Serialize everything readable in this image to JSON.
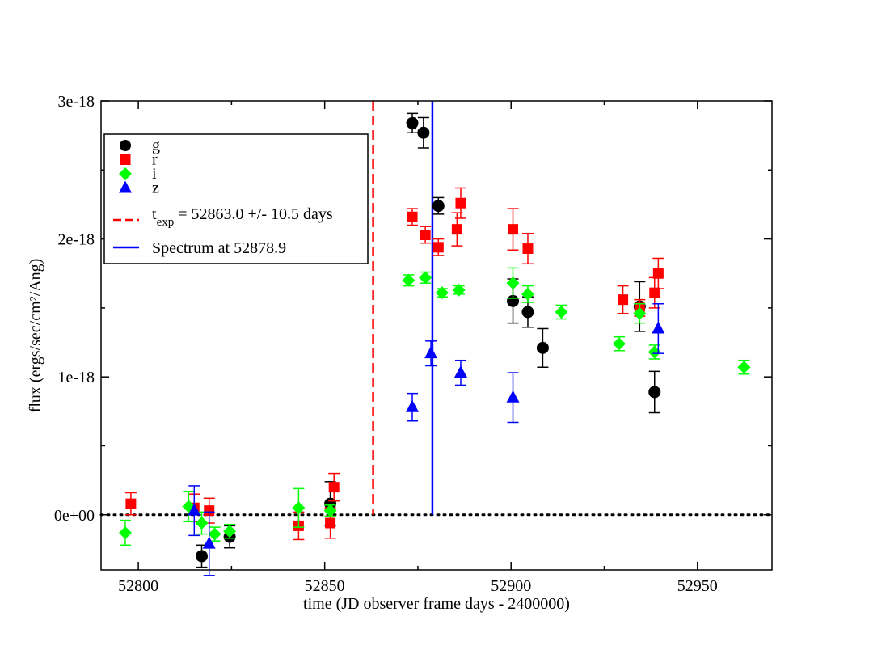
{
  "chart_data": {
    "type": "scatter",
    "title": "",
    "xlabel": "time (JD observer frame days - 2400000)",
    "ylabel": "flux (ergs/sec/cm²/Ang)",
    "xlim": [
      52790,
      52970
    ],
    "ylim": [
      -4e-19,
      3e-18
    ],
    "x_ticks": [
      52800,
      52850,
      52900,
      52950
    ],
    "y_ticks": [
      {
        "value": 0,
        "label": "0e+00"
      },
      {
        "value": 1e-18,
        "label": "1e-18"
      },
      {
        "value": 2e-18,
        "label": "2e-18"
      },
      {
        "value": 3e-18,
        "label": "3e-18"
      }
    ],
    "zero_line": {
      "y": 0,
      "style": "dotted",
      "color": "#000000"
    },
    "vertical_lines": [
      {
        "name": "t_exp",
        "x": 52863.0,
        "color": "#ff0000",
        "style": "dashed",
        "legend_main": "t",
        "legend_sub": "exp",
        "legend_rest": " = 52863.0 +/- 10.5 days"
      },
      {
        "name": "spectrum",
        "x": 52878.9,
        "color": "#0000ff",
        "style": "solid",
        "legend_main": "Spectrum at 52878.9",
        "legend_sub": "",
        "legend_rest": ""
      }
    ],
    "legend_position": "top-left",
    "series": [
      {
        "name": "g",
        "color": "#000000",
        "marker": "circle",
        "points": [
          {
            "x": 52817.0,
            "y": -3e-19,
            "err": 8e-20
          },
          {
            "x": 52824.5,
            "y": -1.6e-19,
            "err": 8e-20
          },
          {
            "x": 52851.5,
            "y": 8e-20,
            "err": 1.6e-19
          },
          {
            "x": 52873.5,
            "y": 2.84e-18,
            "err": 7e-20
          },
          {
            "x": 52876.5,
            "y": 2.77e-18,
            "err": 1.1e-19
          },
          {
            "x": 52880.5,
            "y": 2.24e-18,
            "err": 6e-20
          },
          {
            "x": 52900.5,
            "y": 1.55e-18,
            "err": 1.6e-19
          },
          {
            "x": 52904.5,
            "y": 1.47e-18,
            "err": 1.1e-19
          },
          {
            "x": 52908.5,
            "y": 1.21e-18,
            "err": 1.4e-19
          },
          {
            "x": 52934.5,
            "y": 1.51e-18,
            "err": 1.8e-19
          },
          {
            "x": 52938.5,
            "y": 8.9e-19,
            "err": 1.5e-19
          }
        ]
      },
      {
        "name": "r",
        "color": "#ff0000",
        "marker": "square",
        "points": [
          {
            "x": 52798.0,
            "y": 8e-20,
            "err": 8e-20
          },
          {
            "x": 52815.0,
            "y": 5e-20,
            "err": 1e-19
          },
          {
            "x": 52819.0,
            "y": 3e-20,
            "err": 9e-20
          },
          {
            "x": 52843.0,
            "y": -8e-20,
            "err": 1e-19
          },
          {
            "x": 52851.5,
            "y": -6e-20,
            "err": 1.1e-19
          },
          {
            "x": 52852.5,
            "y": 2e-19,
            "err": 1e-19
          },
          {
            "x": 52873.5,
            "y": 2.16e-18,
            "err": 6e-20
          },
          {
            "x": 52877.0,
            "y": 2.03e-18,
            "err": 6e-20
          },
          {
            "x": 52880.5,
            "y": 1.94e-18,
            "err": 6e-20
          },
          {
            "x": 52885.5,
            "y": 2.07e-18,
            "err": 1.2e-19
          },
          {
            "x": 52886.5,
            "y": 2.26e-18,
            "err": 1.1e-19
          },
          {
            "x": 52900.5,
            "y": 2.07e-18,
            "err": 1.5e-19
          },
          {
            "x": 52904.5,
            "y": 1.93e-18,
            "err": 1.1e-19
          },
          {
            "x": 52930.0,
            "y": 1.56e-18,
            "err": 1e-19
          },
          {
            "x": 52934.5,
            "y": 1.5e-18,
            "err": 6e-20
          },
          {
            "x": 52938.5,
            "y": 1.61e-18,
            "err": 1.1e-19
          },
          {
            "x": 52939.5,
            "y": 1.75e-18,
            "err": 1.1e-19
          }
        ]
      },
      {
        "name": "i",
        "color": "#00ff00",
        "marker": "diamond",
        "points": [
          {
            "x": 52796.5,
            "y": -1.3e-19,
            "err": 9e-20
          },
          {
            "x": 52813.5,
            "y": 6e-20,
            "err": 1.1e-19
          },
          {
            "x": 52817.0,
            "y": -6e-20,
            "err": 8e-20
          },
          {
            "x": 52820.5,
            "y": -1.4e-19,
            "err": 5e-20
          },
          {
            "x": 52824.5,
            "y": -1.2e-19,
            "err": 5e-20
          },
          {
            "x": 52843.0,
            "y": 5e-20,
            "err": 1.4e-19
          },
          {
            "x": 52851.5,
            "y": 3e-20,
            "err": 4e-20
          },
          {
            "x": 52872.5,
            "y": 1.7e-18,
            "err": 4e-20
          },
          {
            "x": 52877.0,
            "y": 1.72e-18,
            "err": 4e-20
          },
          {
            "x": 52881.5,
            "y": 1.61e-18,
            "err": 3e-20
          },
          {
            "x": 52886.0,
            "y": 1.63e-18,
            "err": 3e-20
          },
          {
            "x": 52900.5,
            "y": 1.68e-18,
            "err": 1.1e-19
          },
          {
            "x": 52904.5,
            "y": 1.6e-18,
            "err": 6e-20
          },
          {
            "x": 52913.5,
            "y": 1.47e-18,
            "err": 5e-20
          },
          {
            "x": 52929.0,
            "y": 1.24e-18,
            "err": 5e-20
          },
          {
            "x": 52934.5,
            "y": 1.46e-18,
            "err": 7e-20
          },
          {
            "x": 52938.5,
            "y": 1.18e-18,
            "err": 5e-20
          },
          {
            "x": 52962.5,
            "y": 1.07e-18,
            "err": 5e-20
          }
        ]
      },
      {
        "name": "z",
        "color": "#0000ff",
        "marker": "triangle",
        "points": [
          {
            "x": 52815.0,
            "y": 3e-20,
            "err": 1.8e-19
          },
          {
            "x": 52819.0,
            "y": -2.1e-19,
            "err": 2.3e-19
          },
          {
            "x": 52873.5,
            "y": 7.8e-19,
            "err": 1e-19
          },
          {
            "x": 52878.5,
            "y": 1.17e-18,
            "err": 9e-20
          },
          {
            "x": 52886.5,
            "y": 1.03e-18,
            "err": 9e-20
          },
          {
            "x": 52900.5,
            "y": 8.5e-19,
            "err": 1.8e-19
          },
          {
            "x": 52939.5,
            "y": 1.35e-18,
            "err": 1.8e-19
          }
        ]
      }
    ]
  }
}
